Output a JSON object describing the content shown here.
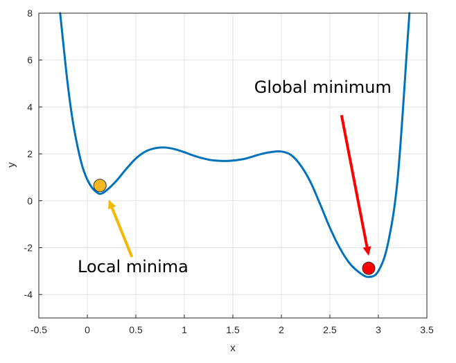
{
  "chart_data": {
    "type": "line",
    "title": "",
    "xlabel": "x",
    "ylabel": "y",
    "xlim": [
      -0.5,
      3.5
    ],
    "ylim": [
      -5,
      8
    ],
    "xticks": [
      -0.5,
      0,
      0.5,
      1,
      1.5,
      2,
      2.5,
      3,
      3.5
    ],
    "xtick_labels": [
      "-0.5",
      "0",
      "0.5",
      "1",
      "1.5",
      "2",
      "2.5",
      "3",
      "3.5"
    ],
    "yticks": [
      -4,
      -2,
      0,
      2,
      4,
      6,
      8
    ],
    "ytick_labels": [
      "-4",
      "-2",
      "0",
      "2",
      "4",
      "6",
      "8"
    ],
    "grid": true,
    "series": [
      {
        "color": "#0072BD",
        "x": [
          -0.28,
          -0.25,
          -0.2,
          -0.15,
          -0.1,
          -0.05,
          0.0,
          0.05,
          0.1,
          0.14,
          0.2,
          0.3,
          0.4,
          0.5,
          0.6,
          0.7,
          0.8,
          0.9,
          1.0,
          1.1,
          1.2,
          1.3,
          1.45,
          1.6,
          1.7,
          1.8,
          1.9,
          2.0,
          2.1,
          2.2,
          2.3,
          2.4,
          2.5,
          2.6,
          2.7,
          2.8,
          2.9,
          3.0,
          3.1,
          3.2,
          3.3,
          3.32
        ],
        "y": [
          8.0,
          6.8,
          4.9,
          3.4,
          2.3,
          1.45,
          0.9,
          0.55,
          0.35,
          0.3,
          0.45,
          0.85,
          1.35,
          1.8,
          2.1,
          2.24,
          2.27,
          2.2,
          2.07,
          1.92,
          1.8,
          1.72,
          1.7,
          1.77,
          1.88,
          2.0,
          2.08,
          2.1,
          1.95,
          1.5,
          0.8,
          -0.15,
          -1.15,
          -2.0,
          -2.65,
          -3.05,
          -3.25,
          -3.0,
          -1.8,
          1.0,
          6.8,
          8.0
        ]
      }
    ],
    "markers": [
      {
        "x": 0.13,
        "y": 0.65,
        "color": "#F5B820"
      },
      {
        "x": 2.9,
        "y": -2.88,
        "color": "#FF0000"
      }
    ],
    "annotations": [
      {
        "text": "Local minima",
        "arrow_color": "#F5B800",
        "text_x": -0.1,
        "text_y": -3.05,
        "arrow_from": [
          0.46,
          -2.4
        ],
        "arrow_to": [
          0.22,
          0.05
        ]
      },
      {
        "text": "Global minimum",
        "arrow_color": "#FF0000",
        "text_x": 1.72,
        "text_y": 4.6,
        "arrow_from": [
          2.62,
          3.65
        ],
        "arrow_to": [
          2.9,
          -2.35
        ]
      }
    ]
  }
}
